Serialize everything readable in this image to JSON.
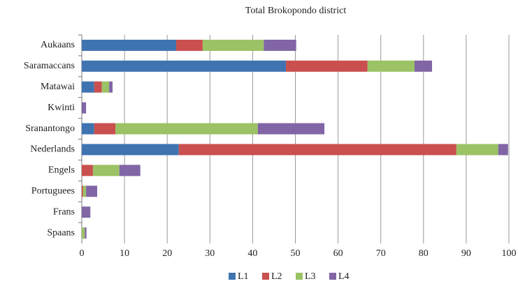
{
  "chart_data": {
    "type": "stacked_barh",
    "title": "Total Brokopondo district",
    "categories": [
      "Aukaans",
      "Saramaccans",
      "Matawai",
      "Kwinti",
      "Sranantongo",
      "Nederlands",
      "Engels",
      "Portuguees",
      "Frans",
      "Spaans"
    ],
    "series": [
      {
        "name": "L1",
        "color": "#3f74b1",
        "values": [
          22.1,
          47.8,
          2.9,
          0,
          2.9,
          22.7,
          0,
          0,
          0,
          0
        ]
      },
      {
        "name": "L2",
        "color": "#c9504f",
        "values": [
          6.2,
          19.1,
          1.8,
          0,
          5.0,
          65.0,
          2.6,
          0.3,
          0,
          0
        ]
      },
      {
        "name": "L3",
        "color": "#9bc264",
        "values": [
          14.3,
          11.0,
          1.7,
          0,
          33.3,
          9.8,
          6.2,
          0.7,
          0,
          0.7
        ]
      },
      {
        "name": "L4",
        "color": "#8165a5",
        "values": [
          7.6,
          4.1,
          0.8,
          1.0,
          15.6,
          2.3,
          4.9,
          2.6,
          2.0,
          0.4
        ]
      }
    ],
    "xlim": [
      0,
      100
    ],
    "xticks": [
      0,
      10,
      20,
      30,
      40,
      50,
      60,
      70,
      80,
      90,
      100
    ],
    "grid": true,
    "legend": "bottom"
  }
}
